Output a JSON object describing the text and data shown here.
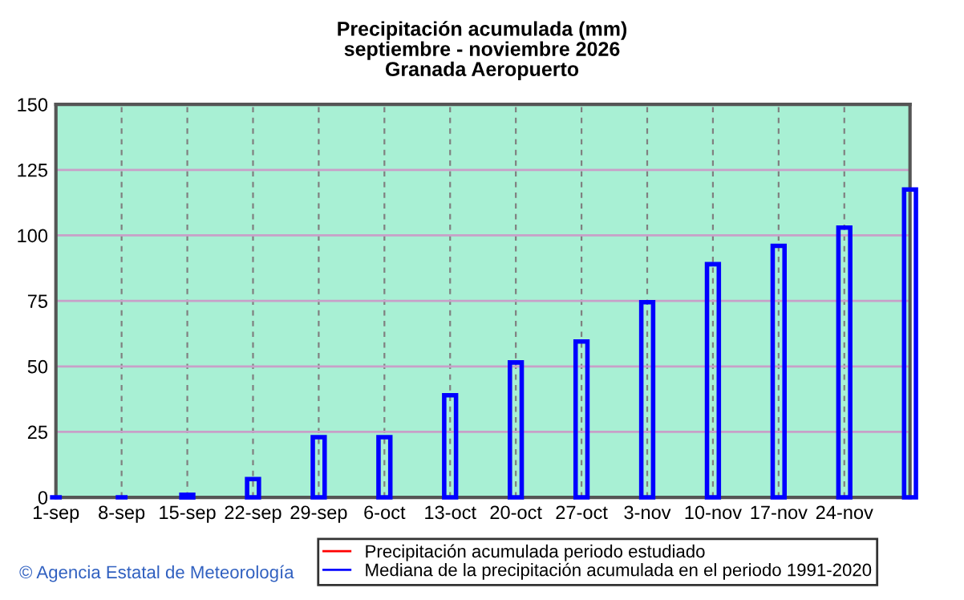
{
  "chart_data": {
    "type": "bar",
    "title": "Precipitación acumulada (mm)\nseptiembre - noviembre 2026\nGranada Aeropuerto",
    "categories": [
      "1-sep",
      "8-sep",
      "15-sep",
      "22-sep",
      "29-sep",
      "6-oct",
      "13-oct",
      "20-oct",
      "27-oct",
      "3-nov",
      "10-nov",
      "17-nov",
      "24-nov",
      null
    ],
    "series": [
      {
        "name": "Precipitación acumulada periodo estudiado",
        "color": "#ff0000",
        "type": "line",
        "values": [
          null,
          null,
          null,
          null,
          null,
          null,
          null,
          null,
          null,
          null,
          null,
          null,
          null,
          null
        ]
      },
      {
        "name": "Mediana de la precipitación acumulada en el periodo 1991-2020",
        "color": "#0000ff",
        "values": [
          0,
          0,
          1,
          7,
          23,
          23,
          39,
          51.5,
          59.5,
          74.5,
          89,
          96,
          103,
          117.5
        ]
      }
    ],
    "ylim": [
      0,
      150
    ],
    "yticks": [
      0,
      25,
      50,
      75,
      100,
      125,
      150
    ],
    "grid": true,
    "legend": "bottom",
    "annotations": [
      "© Agencia Estatal de Meteorología"
    ]
  }
}
